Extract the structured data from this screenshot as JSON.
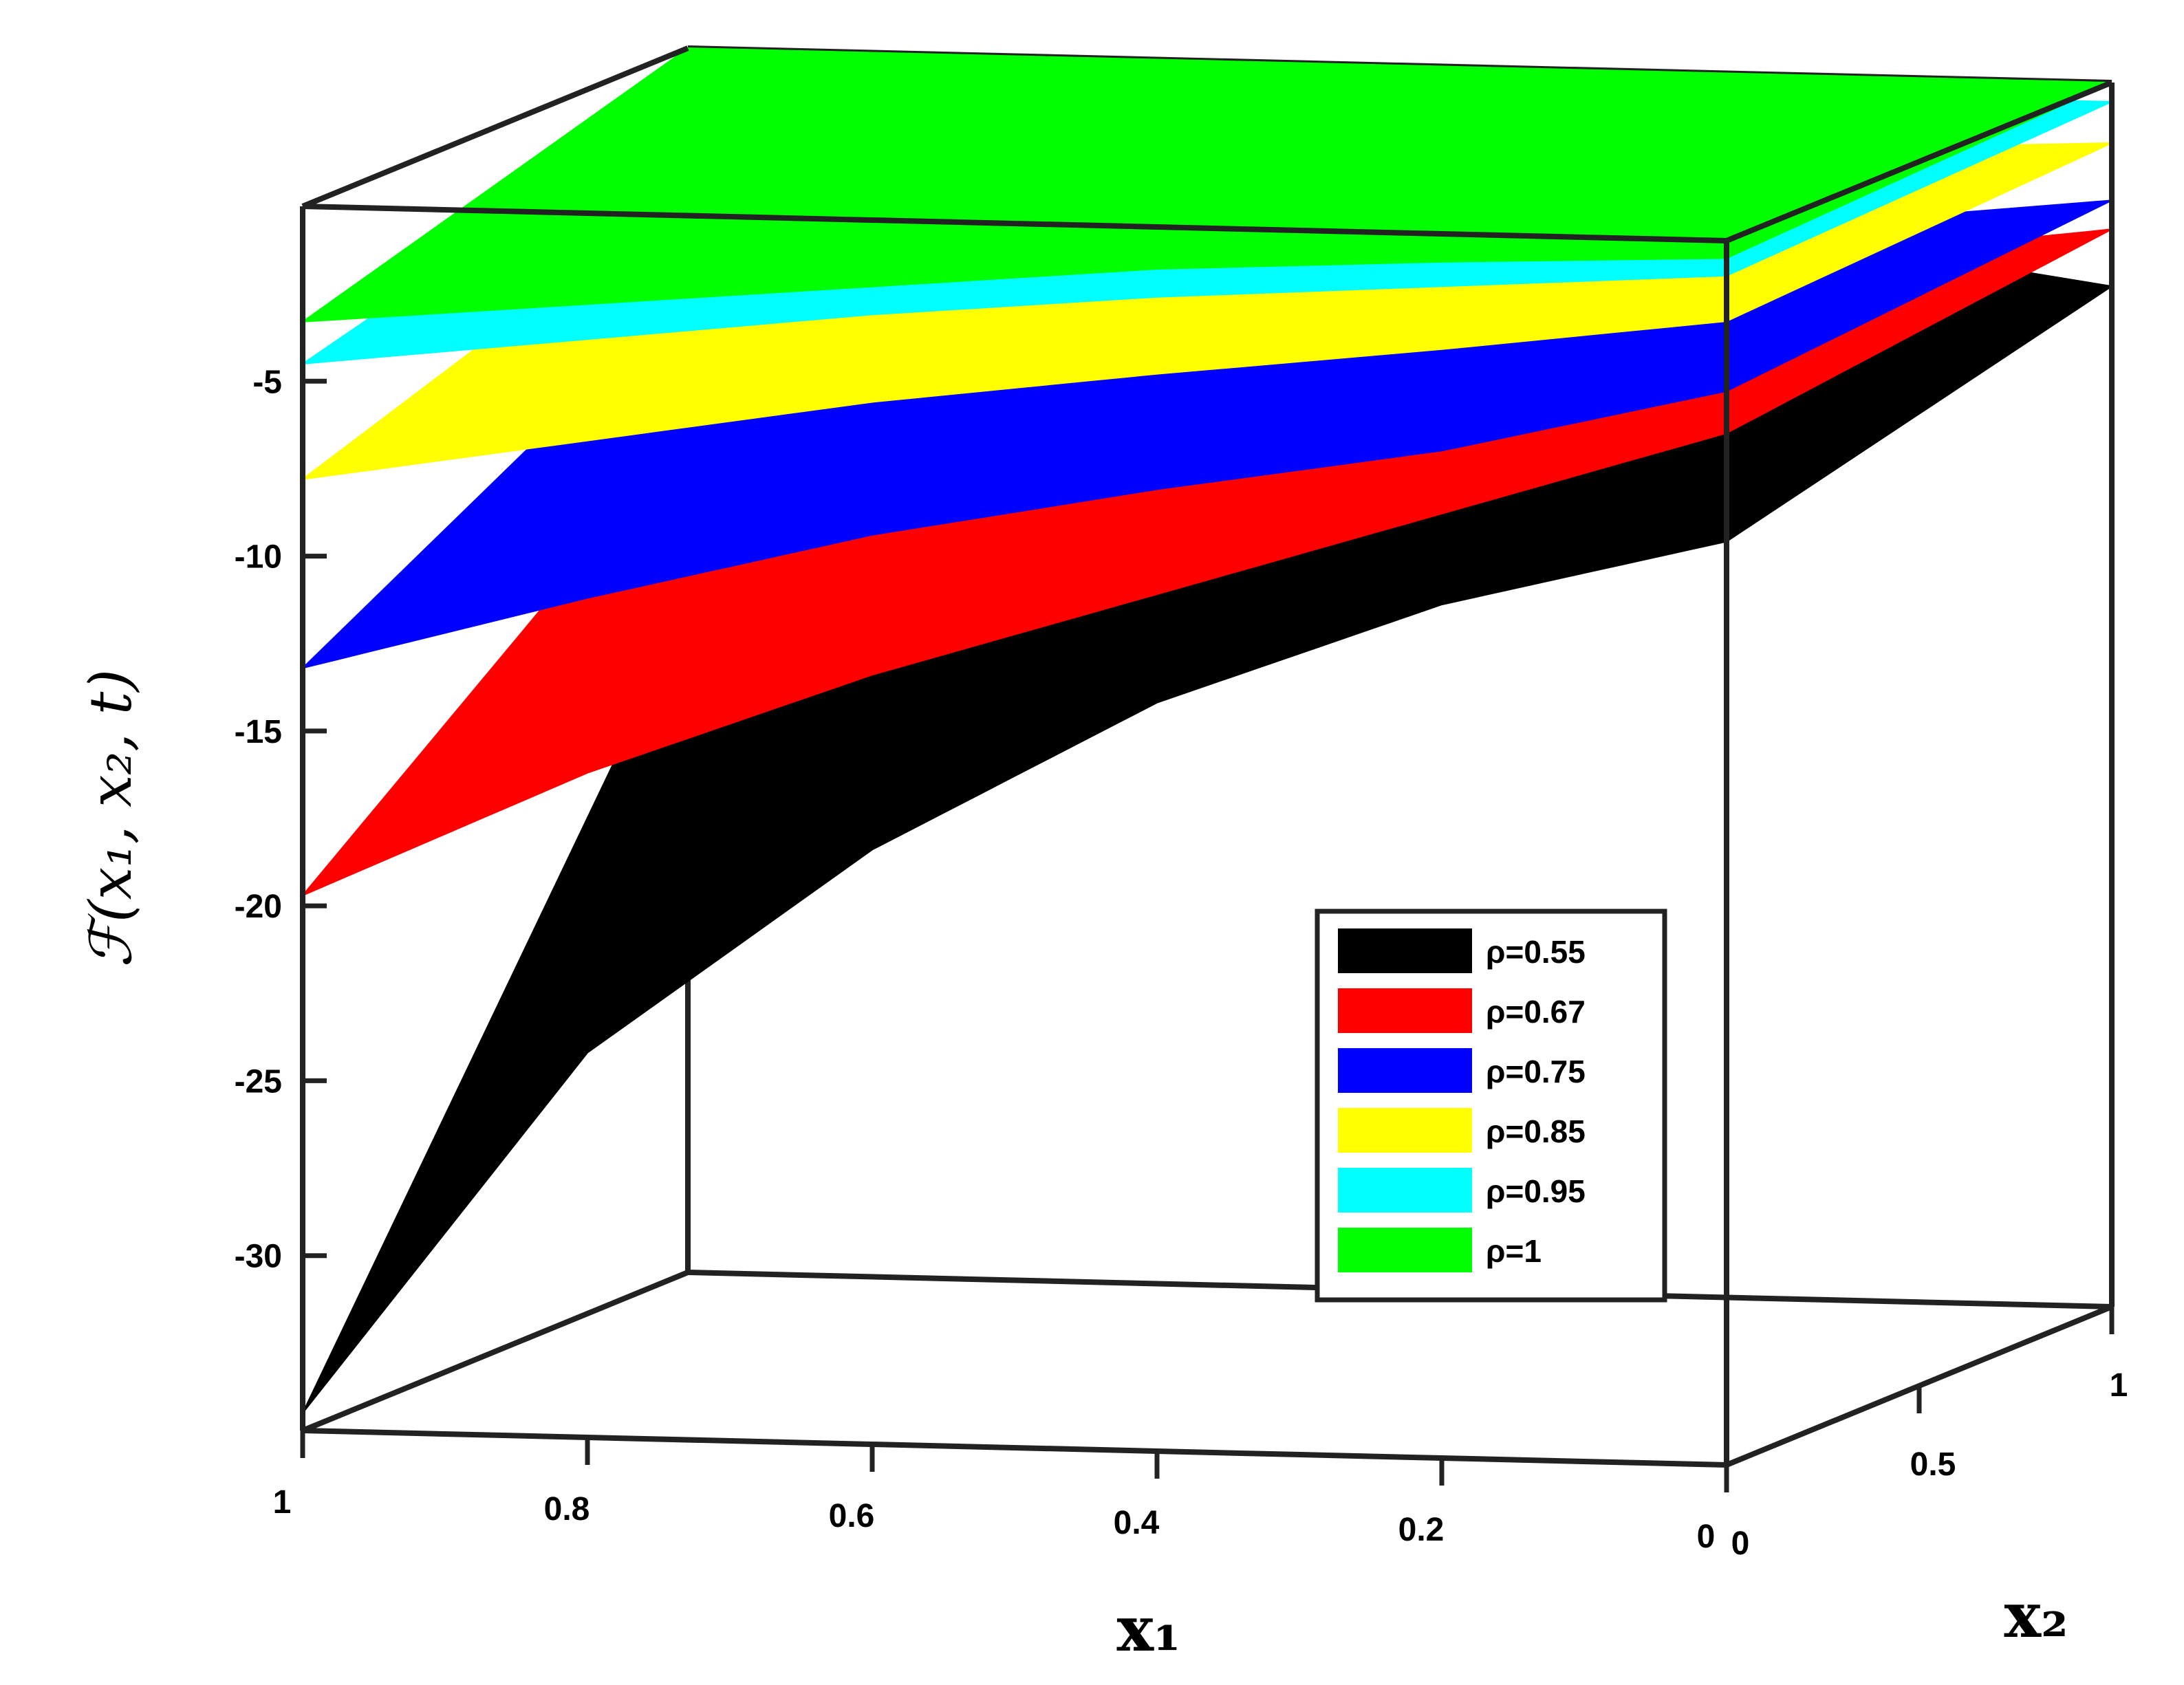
{
  "chart_data": {
    "type": "surface",
    "ylabel": "ℱ(x₁, x₂, t)",
    "xlabel": "x₁",
    "x2label": "x₂",
    "x1_ticks": [
      "1",
      "0.8",
      "0.6",
      "0.4",
      "0.2",
      "0"
    ],
    "x2_ticks": [
      "1",
      "0.5",
      "0"
    ],
    "z_ticks": [
      "-5",
      "-10",
      "-15",
      "-20",
      "-25",
      "-30"
    ],
    "x1_range": [
      0,
      1
    ],
    "x2_range": [
      0,
      1
    ],
    "z_range": [
      -35,
      0
    ],
    "legend_position": "lower-right inside",
    "series": [
      {
        "name": "ρ=0.55",
        "rho": 0.55,
        "color": "#000000",
        "front_edge": {
          "x1": [
            1,
            0.8,
            0.6,
            0.4,
            0.2,
            0
          ],
          "z": [
            -34.5,
            -24.0,
            -18.0,
            -13.6,
            -10.6,
            -8.6
          ]
        },
        "left_edge_at_x1_1": {
          "x2": [
            0,
            1
          ],
          "z": [
            -34.5,
            -16.0
          ]
        }
      },
      {
        "name": "ρ=0.67",
        "rho": 0.67,
        "color": "#ff0000",
        "front_edge": {
          "x1": [
            1,
            0.8,
            0.6,
            0.4,
            0.2,
            0
          ],
          "z": [
            -19.7,
            -16.0,
            -13.0,
            -10.5,
            -8.0,
            -5.5
          ]
        },
        "left_edge_at_x1_1": {
          "x2": [
            0,
            1
          ],
          "z": [
            -19.7,
            -11.0
          ]
        }
      },
      {
        "name": "ρ=0.75",
        "rho": 0.75,
        "color": "#0000ff",
        "front_edge": {
          "x1": [
            1,
            0.8,
            0.6,
            0.4,
            0.2,
            0
          ],
          "z": [
            -13.2,
            -11.0,
            -9.0,
            -7.5,
            -6.2,
            -4.3
          ]
        },
        "left_edge_at_x1_1": {
          "x2": [
            0,
            1
          ],
          "z": [
            -13.2,
            -7.0
          ]
        }
      },
      {
        "name": "ρ=0.85",
        "rho": 0.85,
        "color": "#ffff00",
        "front_edge": {
          "x1": [
            1,
            0.8,
            0.6,
            0.4,
            0.2,
            0
          ],
          "z": [
            -7.8,
            -6.5,
            -5.2,
            -4.2,
            -3.3,
            -2.3
          ]
        },
        "left_edge_at_x1_1": {
          "x2": [
            0,
            1
          ],
          "z": [
            -7.8,
            -4.0
          ]
        }
      },
      {
        "name": "ρ=0.95",
        "rho": 0.95,
        "color": "#00ffff",
        "front_edge": {
          "x1": [
            1,
            0.8,
            0.6,
            0.4,
            0.2,
            0
          ],
          "z": [
            -4.5,
            -3.6,
            -2.7,
            -2.0,
            -1.5,
            -1.0
          ]
        },
        "left_edge_at_x1_1": {
          "x2": [
            0,
            1
          ],
          "z": [
            -4.5,
            -1.5
          ]
        }
      },
      {
        "name": "ρ=1",
        "rho": 1.0,
        "color": "#00ff00",
        "front_edge": {
          "x1": [
            1,
            0.8,
            0.6,
            0.4,
            0.2,
            0
          ],
          "z": [
            -3.3,
            -2.6,
            -1.9,
            -1.2,
            -0.8,
            -0.5
          ]
        },
        "left_edge_at_x1_1": {
          "x2": [
            0,
            1
          ],
          "z": [
            -3.3,
            0.0
          ]
        }
      }
    ]
  }
}
